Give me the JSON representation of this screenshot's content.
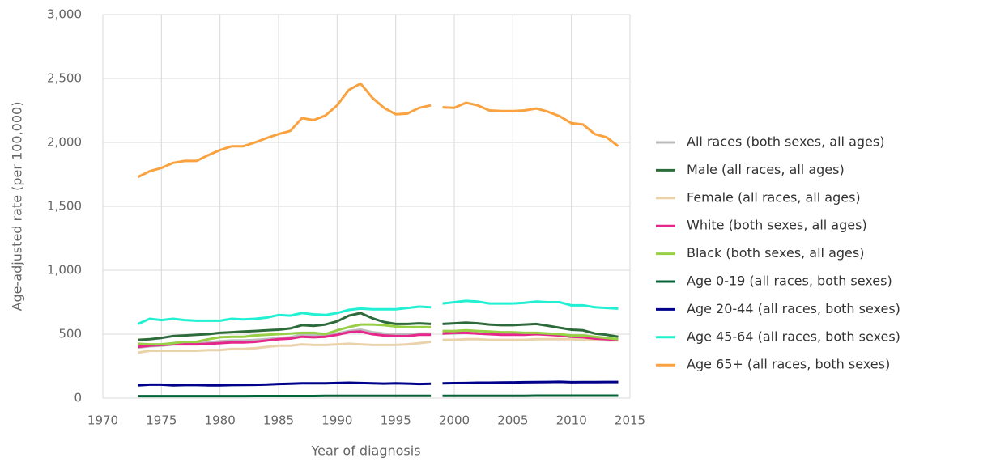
{
  "chart_data": {
    "type": "line",
    "xlabel": "Year of diagnosis",
    "ylabel": "Age-adjusted rate (per 100,000)",
    "x": [
      1973,
      1974,
      1975,
      1976,
      1977,
      1978,
      1979,
      1980,
      1981,
      1982,
      1983,
      1984,
      1985,
      1986,
      1987,
      1988,
      1989,
      1990,
      1991,
      1992,
      1993,
      1994,
      1995,
      1996,
      1997,
      1998,
      null,
      1999,
      2000,
      2001,
      2002,
      2003,
      2004,
      2005,
      2006,
      2007,
      2008,
      2009,
      2010,
      2011,
      2012,
      2013,
      2014
    ],
    "xlim": [
      1970,
      2015
    ],
    "xticks": [
      1970,
      1975,
      1980,
      1985,
      1990,
      1995,
      2000,
      2005,
      2010,
      2015
    ],
    "ylim": [
      0,
      3000
    ],
    "yticks": [
      0,
      500,
      {
        "value": 1000,
        "label": "1,000"
      },
      {
        "value": 1500,
        "label": "1,500"
      },
      {
        "value": 2000,
        "label": "2,000"
      },
      {
        "value": 2500,
        "label": "2,500"
      },
      {
        "value": 3000,
        "label": "3,000"
      }
    ],
    "grid": true,
    "legend": "right",
    "series": [
      {
        "name": "All races (both sexes, all ages)",
        "color": "#bbbbbb",
        "values": [
          395,
          405,
          410,
          420,
          425,
          425,
          435,
          445,
          450,
          450,
          455,
          460,
          470,
          475,
          495,
          490,
          490,
          505,
          525,
          535,
          515,
          505,
          500,
          500,
          505,
          505,
          null,
          505,
          505,
          510,
          505,
          500,
          500,
          500,
          500,
          505,
          500,
          495,
          485,
          480,
          470,
          465,
          460
        ]
      },
      {
        "name": "Male (all races, all ages)",
        "color": "#2e6b3a",
        "values": [
          455,
          460,
          470,
          485,
          490,
          495,
          500,
          510,
          515,
          520,
          525,
          530,
          535,
          545,
          570,
          565,
          575,
          600,
          645,
          665,
          625,
          595,
          580,
          580,
          585,
          580,
          null,
          580,
          585,
          590,
          585,
          575,
          570,
          570,
          575,
          580,
          565,
          550,
          535,
          530,
          505,
          495,
          480
        ]
      },
      {
        "name": "Female (all races, all ages)",
        "color": "#ead3aa",
        "values": [
          355,
          370,
          370,
          370,
          370,
          370,
          375,
          375,
          385,
          385,
          390,
          400,
          410,
          410,
          420,
          415,
          415,
          420,
          425,
          420,
          415,
          415,
          415,
          420,
          430,
          440,
          null,
          455,
          455,
          460,
          460,
          455,
          455,
          455,
          455,
          460,
          460,
          460,
          460,
          455,
          455,
          450,
          450
        ]
      },
      {
        "name": "White (both sexes, all ages)",
        "color": "#e5268a",
        "values": [
          400,
          410,
          415,
          420,
          420,
          420,
          425,
          430,
          435,
          435,
          440,
          450,
          460,
          465,
          480,
          475,
          480,
          495,
          515,
          520,
          500,
          490,
          485,
          485,
          495,
          495,
          null,
          505,
          510,
          510,
          505,
          500,
          495,
          495,
          495,
          500,
          495,
          490,
          480,
          475,
          465,
          460,
          455
        ]
      },
      {
        "name": "Black (both sexes, all ages)",
        "color": "#97cf46",
        "values": [
          425,
          420,
          420,
          430,
          440,
          440,
          460,
          475,
          480,
          480,
          490,
          495,
          500,
          505,
          510,
          510,
          500,
          530,
          555,
          575,
          575,
          570,
          560,
          555,
          555,
          555,
          null,
          525,
          525,
          530,
          525,
          520,
          515,
          515,
          510,
          510,
          505,
          500,
          490,
          490,
          480,
          470,
          460
        ]
      },
      {
        "name": "Age 0-19 (all races, both sexes)",
        "color": "#05633a",
        "values": [
          15,
          15,
          15,
          15,
          15,
          15,
          15,
          15,
          15,
          15,
          16,
          16,
          16,
          16,
          16,
          16,
          17,
          17,
          17,
          17,
          17,
          17,
          17,
          17,
          17,
          17,
          null,
          17,
          18,
          18,
          18,
          18,
          18,
          18,
          18,
          19,
          19,
          19,
          19,
          19,
          19,
          19,
          19
        ]
      },
      {
        "name": "Age 20-44 (all races, both sexes)",
        "color": "#00008b",
        "values": [
          100,
          105,
          105,
          100,
          102,
          102,
          100,
          100,
          102,
          103,
          104,
          106,
          110,
          112,
          115,
          115,
          116,
          118,
          120,
          118,
          115,
          113,
          115,
          113,
          110,
          112,
          null,
          115,
          117,
          118,
          120,
          120,
          122,
          123,
          124,
          125,
          126,
          127,
          124,
          125,
          125,
          126,
          126
        ]
      },
      {
        "name": "Age 45-64 (all races, both sexes)",
        "color": "#22f0d2",
        "values": [
          580,
          620,
          610,
          620,
          610,
          605,
          605,
          605,
          620,
          615,
          620,
          630,
          650,
          645,
          665,
          655,
          650,
          665,
          690,
          700,
          695,
          695,
          695,
          705,
          715,
          710,
          null,
          740,
          750,
          760,
          755,
          740,
          740,
          740,
          745,
          755,
          750,
          750,
          725,
          725,
          710,
          705,
          700
        ]
      },
      {
        "name": "Age 65+ (all races, both sexes)",
        "color": "#f9a23f",
        "values": [
          1730,
          1775,
          1800,
          1840,
          1855,
          1855,
          1900,
          1940,
          1970,
          1970,
          2000,
          2035,
          2065,
          2090,
          2190,
          2175,
          2210,
          2290,
          2410,
          2460,
          2350,
          2270,
          2220,
          2225,
          2270,
          2290,
          null,
          2275,
          2270,
          2310,
          2290,
          2250,
          2245,
          2245,
          2250,
          2265,
          2240,
          2205,
          2150,
          2140,
          2065,
          2040,
          1970
        ]
      }
    ]
  }
}
